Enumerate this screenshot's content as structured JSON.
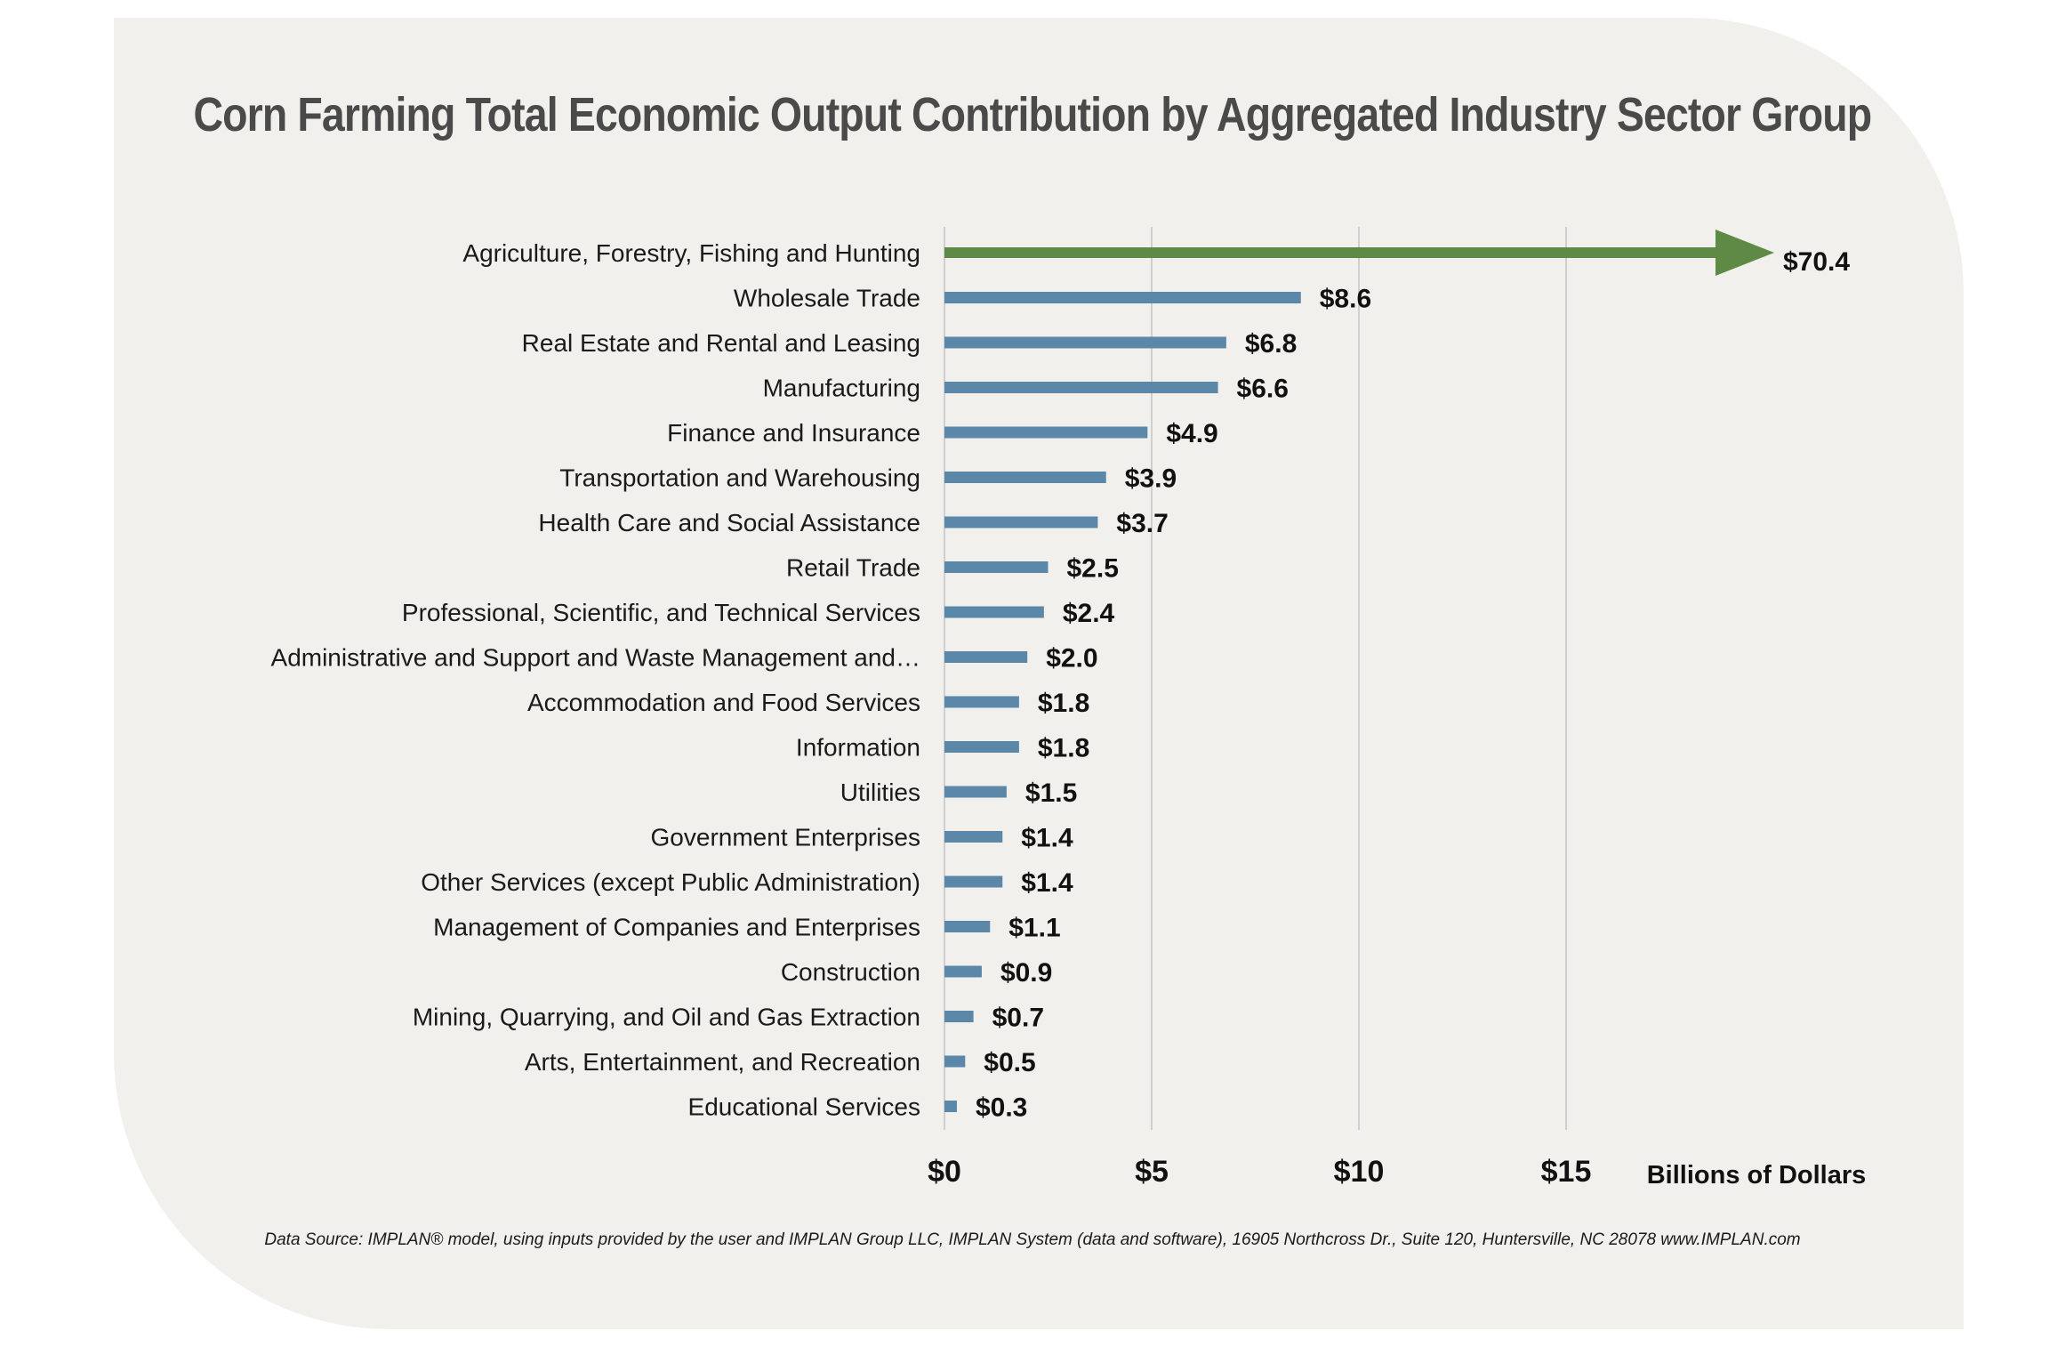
{
  "chart_data": {
    "type": "bar",
    "orientation": "horizontal",
    "title": "Corn Farming Total Economic Output Contribution by Aggregated Industry Sector Group",
    "xlabel": "Billions of Dollars",
    "xlim": [
      0,
      20
    ],
    "xticks": [
      0,
      5,
      10,
      15
    ],
    "xtick_labels": [
      "$0",
      "$5",
      "$10",
      "$15"
    ],
    "grid": true,
    "categories": [
      "Agriculture, Forestry, Fishing and Hunting",
      "Wholesale Trade",
      "Real Estate and Rental and Leasing",
      "Manufacturing",
      "Finance and Insurance",
      "Transportation and Warehousing",
      "Health Care and Social Assistance",
      "Retail Trade",
      "Professional, Scientific, and Technical Services",
      "Administrative and Support and Waste Management and…",
      "Accommodation and Food Services",
      "Information",
      "Utilities",
      "Government Enterprises",
      "Other Services (except Public Administration)",
      "Management of Companies and Enterprises",
      "Construction",
      "Mining, Quarrying, and Oil and Gas Extraction",
      "Arts, Entertainment, and Recreation",
      "Educational Services"
    ],
    "values": [
      70.4,
      8.6,
      6.8,
      6.6,
      4.9,
      3.9,
      3.7,
      2.5,
      2.4,
      2.0,
      1.8,
      1.8,
      1.5,
      1.4,
      1.4,
      1.1,
      0.9,
      0.7,
      0.5,
      0.3
    ],
    "value_labels": [
      "$70.4",
      "$8.6",
      "$6.8",
      "$6.6",
      "$4.9",
      "$3.9",
      "$3.7",
      "$2.5",
      "$2.4",
      "$2.0",
      "$1.8",
      "$1.8",
      "$1.5",
      "$1.4",
      "$1.4",
      "$1.1",
      "$0.9",
      "$0.7",
      "$0.5",
      "$0.3"
    ],
    "highlight_index": 0,
    "highlight_style": "arrow (off-scale)",
    "colors": {
      "bar": "#5b87a8",
      "highlight": "#5e8a45",
      "grid": "#cfcfcf"
    }
  },
  "source_note": "Data Source: IMPLAN® model, using inputs provided by the user and IMPLAN Group LLC, IMPLAN System (data and software), 16905 Northcross Dr., Suite 120, Huntersville, NC 28078 www.IMPLAN.com"
}
